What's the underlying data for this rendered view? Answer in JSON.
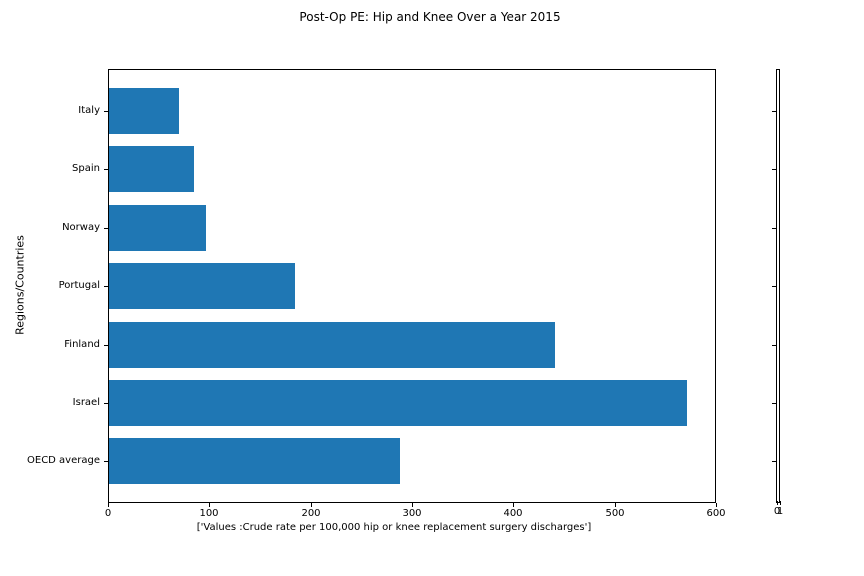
{
  "chart_data": {
    "type": "bar",
    "orientation": "horizontal",
    "title": "Post-Op PE: Hip and Knee Over a Year 2015",
    "xlabel": "['Values :Crude rate per 100,000 hip or knee replacement surgery discharges']",
    "ylabel": "Regions/Countries",
    "categories": [
      "Italy",
      "Spain",
      "Norway",
      "Portugal",
      "Finland",
      "Israel",
      "OECD average"
    ],
    "values": [
      69,
      84,
      96,
      184,
      442,
      572,
      288
    ],
    "xlim": [
      0,
      600
    ],
    "xticks": [
      0,
      100,
      200,
      300,
      400,
      500,
      600
    ],
    "bar_color": "#1f77b4",
    "grid": false,
    "legend": null,
    "background_color": "#ffffff",
    "spine_color": "#000000"
  },
  "secondary_axis": {
    "xtick_labels": [
      "0",
      "1"
    ],
    "ytick_count": 7
  }
}
